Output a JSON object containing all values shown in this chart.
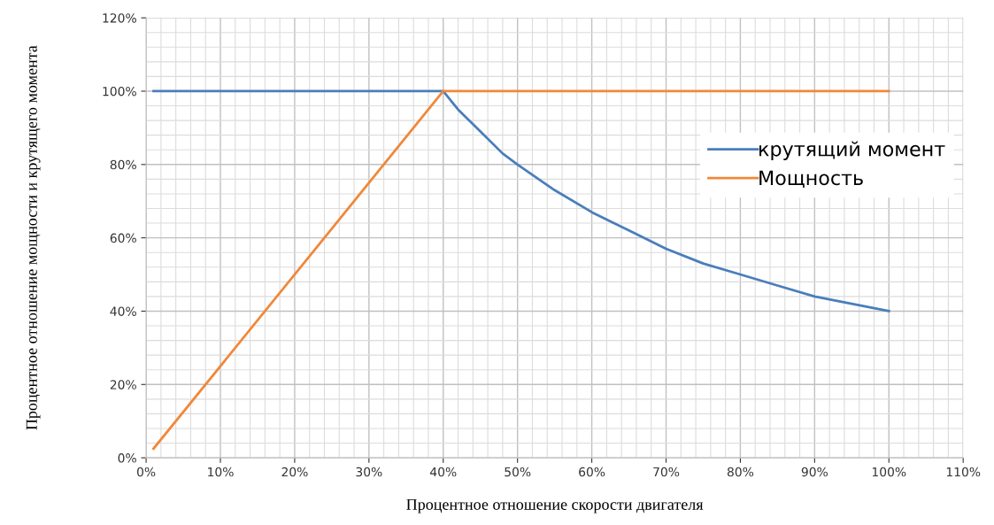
{
  "chart_data": {
    "type": "line",
    "xlabel": "Процентное отношение скорости двигателя",
    "ylabel": "Процентное отношение мощности и крутящего момента",
    "series": [
      {
        "name": "крутящий момент",
        "color": "#4a7ebb",
        "x": [
          1,
          10,
          20,
          30,
          39,
          40,
          42,
          45,
          48,
          50,
          55,
          60,
          65,
          70,
          75,
          80,
          85,
          90,
          95,
          100
        ],
        "values": [
          100,
          100,
          100,
          100,
          100,
          100,
          95,
          89,
          83,
          80,
          73,
          67,
          62,
          57,
          53,
          50,
          47,
          44,
          42,
          40
        ]
      },
      {
        "name": "Мощность",
        "color": "#f0883a",
        "x": [
          1,
          40,
          100
        ],
        "values": [
          2.5,
          100,
          100
        ]
      }
    ],
    "xlim": [
      0,
      110
    ],
    "xticks": [
      {
        "value": 0,
        "label": "0%"
      },
      {
        "value": 10,
        "label": "10%"
      },
      {
        "value": 20,
        "label": "20%"
      },
      {
        "value": 30,
        "label": "30%"
      },
      {
        "value": 40,
        "label": "40%"
      },
      {
        "value": 50,
        "label": "50%"
      },
      {
        "value": 60,
        "label": "60%"
      },
      {
        "value": 70,
        "label": "70%"
      },
      {
        "value": 80,
        "label": "80%"
      },
      {
        "value": 90,
        "label": "90%"
      },
      {
        "value": 100,
        "label": "100%"
      },
      {
        "value": 110,
        "label": "110%"
      }
    ],
    "ylim": [
      0,
      120
    ],
    "yticks": [
      {
        "value": 0,
        "label": "0%"
      },
      {
        "value": 20,
        "label": "20%"
      },
      {
        "value": 40,
        "label": "40%"
      },
      {
        "value": 60,
        "label": "60%"
      },
      {
        "value": 80,
        "label": "80%"
      },
      {
        "value": 100,
        "label": "100%"
      },
      {
        "value": 120,
        "label": "120%"
      }
    ],
    "grid": true,
    "legend": "right",
    "marker": "none",
    "line_style": "solid"
  }
}
